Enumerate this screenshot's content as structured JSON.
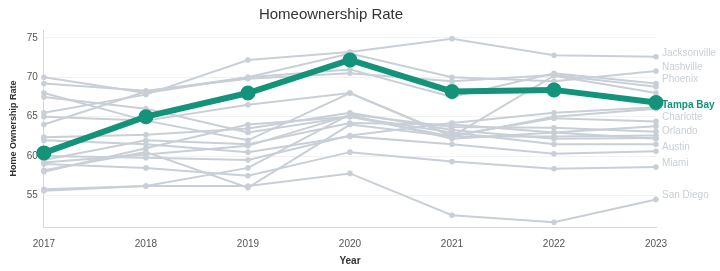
{
  "chart_data": {
    "type": "line",
    "title": "Homeownership Rate",
    "x_label": "Year",
    "y_label": "Home Ownership Rate",
    "categories": [
      "2017",
      "2018",
      "2019",
      "2020",
      "2021",
      "2022",
      "2023"
    ],
    "ylim": [
      51,
      76
    ],
    "yticks": [
      55,
      60,
      65,
      70,
      75
    ],
    "grid": true,
    "series": [
      {
        "color": "#c9cfd6",
        "marker": "circle",
        "line_style": "solid",
        "values": [
          68,
          64.5,
          62,
          68,
          62.5,
          70.2,
          68
        ]
      },
      {
        "color": "#c9cfd6",
        "marker": "circle",
        "line_style": "solid",
        "values": [
          67.5,
          66,
          63,
          65,
          62.5,
          65,
          66
        ]
      },
      {
        "color": "#c9cfd6",
        "marker": "circle",
        "line_style": "solid",
        "values": [
          59.5,
          62,
          61.5,
          64.2,
          64,
          63,
          62.2
        ]
      },
      {
        "color": "#c9cfd6",
        "marker": "circle",
        "line_style": "solid",
        "values": [
          58,
          61,
          64,
          65,
          63,
          61.5,
          61.5
        ]
      },
      {
        "color": "#c9cfd6",
        "marker": "circle",
        "line_style": "solid",
        "values": [
          69.2,
          68.3,
          69.8,
          70.5,
          69.5,
          70.3,
          68.8
        ]
      },
      {
        "color": "#c9cfd6",
        "marker": "circle",
        "line_style": "solid",
        "values": [
          62.4,
          62.7,
          63.5,
          65.5,
          63.3,
          62.2,
          62.3
        ]
      },
      {
        "color": "#c9cfd6",
        "marker": "circle",
        "line_style": "solid",
        "values": [
          60,
          59.8,
          59.5,
          62.6,
          64.2,
          65.5,
          66.2
        ]
      },
      {
        "color": "#c9cfd6",
        "marker": "circle",
        "line_style": "solid",
        "values": [
          59.2,
          60.2,
          61.3,
          65.2,
          62.2,
          63,
          63.8
        ]
      },
      {
        "color": "#c9cfd6",
        "marker": "circle",
        "line_style": "solid",
        "values": [
          55.6,
          56.2,
          58.5,
          65.3,
          63.7,
          63.6,
          63.1
        ]
      },
      {
        "name": "Jacksonville",
        "color": "#c9cfd6",
        "marker": "circle",
        "line_style": "solid",
        "values": [
          65.5,
          67.8,
          72.2,
          73.2,
          74.9,
          72.8,
          72.6
        ]
      },
      {
        "name": "Nashville",
        "color": "#c9cfd6",
        "marker": "circle",
        "line_style": "solid",
        "values": [
          70,
          68,
          70,
          73,
          70,
          69.5,
          70.8
        ]
      },
      {
        "name": "Phoenix",
        "color": "#c9cfd6",
        "marker": "circle",
        "line_style": "solid",
        "values": [
          64,
          68.2,
          70,
          71,
          67.5,
          70.5,
          69.2
        ]
      },
      {
        "name": "Charlotte",
        "color": "#c9cfd6",
        "marker": "circle",
        "line_style": "solid",
        "values": [
          65,
          64.5,
          66.5,
          68,
          62.6,
          64.8,
          64.4
        ]
      },
      {
        "name": "Orlando",
        "color": "#c9cfd6",
        "marker": "circle",
        "line_style": "solid",
        "values": [
          58.2,
          60.5,
          56,
          64,
          62.5,
          62.5,
          62.6
        ]
      },
      {
        "name": "Austin",
        "color": "#c9cfd6",
        "marker": "circle",
        "line_style": "solid",
        "values": [
          62,
          61.5,
          60.5,
          62.5,
          61.5,
          60.3,
          60.6
        ]
      },
      {
        "name": "Miami",
        "color": "#c9cfd6",
        "marker": "circle",
        "line_style": "solid",
        "values": [
          59,
          58.5,
          57.5,
          60.5,
          59.3,
          58.4,
          58.6
        ]
      },
      {
        "name": "San Diego",
        "color": "#c9cfd6",
        "marker": "circle",
        "line_style": "solid",
        "values": [
          55.8,
          56.2,
          56.2,
          57.8,
          52.5,
          51.6,
          54.5
        ]
      },
      {
        "name": "Tampa Bay",
        "color": "#13937a",
        "marker": "circle",
        "line_style": "bold",
        "values": [
          60.4,
          65.0,
          68.0,
          72.2,
          68.2,
          68.4,
          66.8
        ]
      }
    ]
  }
}
